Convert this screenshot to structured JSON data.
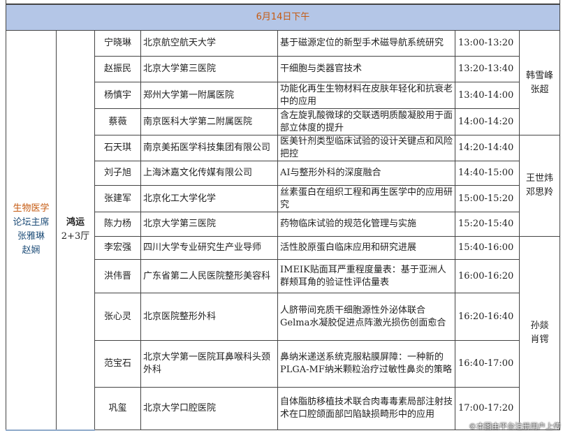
{
  "header": {
    "title": "6月14日下午"
  },
  "forum": {
    "title": "生物医学",
    "chair_label": "论坛主席",
    "chairs": [
      "张雅琳",
      "赵娴"
    ]
  },
  "hall": {
    "line1": "鸿运",
    "line2": "2+3厅"
  },
  "moderators": [
    [
      "韩雪峰",
      "张超"
    ],
    [
      "王世炜",
      "邓思羚"
    ],
    [
      "孙燚",
      "肖锷"
    ]
  ],
  "rows": [
    {
      "name": "宁晓琳",
      "org": "北京航空航天大学",
      "topic": "基于磁源定位的新型手术磁导航系统研究",
      "time": "13:00-13:20"
    },
    {
      "name": "赵振民",
      "org": "北京大学第三医院",
      "topic": "干细胞与类器官技术",
      "time": "13:20-13:40"
    },
    {
      "name": "杨慎宇",
      "org": "郑州大学第一附属医院",
      "topic": "功能化再生生物材料在皮肤年轻化和抗衰老中的应用",
      "time": "13:40-14:00"
    },
    {
      "name": "蔡薇",
      "org": "南京医科大学第二附属医院",
      "topic": "含左旋乳酸微球的交联透明质酸凝胶用于面部立体度的提升",
      "time": "14:00-14:20"
    },
    {
      "name": "石天琪",
      "org": "南京美拓医学科技集团有限公司",
      "topic": "医美针剂类型临床试验的设计关键点和风险把控",
      "time": "14:20-14:40"
    },
    {
      "name": "刘子旭",
      "org": "上海沐嘉文化传媒有限公司",
      "topic": "AI与整形外科的深度融合",
      "time": "14:40-15:00"
    },
    {
      "name": "张建军",
      "org": "北京化工大学化学",
      "topic": "丝素蛋白在组织工程和再生医学中的应用研究",
      "time": "15:00-15:20"
    },
    {
      "name": "陈力杨",
      "org": "北京大学第三医院",
      "topic": "药物临床试验的规范化管理与实施",
      "time": "15:20-15:40"
    },
    {
      "name": "李宏强",
      "org": "四川大学专业研究生产业导师",
      "topic": "活性胶原蛋白临床应用和研究进展",
      "time": "15:40-16:00"
    },
    {
      "name": "洪伟晋",
      "org": "广东省第二人民医院整形美容科",
      "topic": "IMEIK贴面耳严重程度量表：基于亚洲人群颊耳角的验证性评估量表",
      "time": "16:00-16:20"
    },
    {
      "name": "张心灵",
      "org": "北京医院整形外科",
      "topic": "人脐带间充质干细胞源性外泌体联合Gelma水凝胶促进点阵激光损伤创面愈合",
      "time": "16:20-16:40"
    },
    {
      "name": "范宝石",
      "org": "北京大学第一医院耳鼻喉科头颈外科",
      "topic": "鼻纳米递送系统克服粘膜屏障：一种新的PLGA-MF纳米颗粒治疗过敏性鼻炎的策略",
      "time": "16:40-17:00"
    },
    {
      "name": "巩玺",
      "org": "北京大学口腔医院",
      "topic": "自体脂肪移植技术联合肉毒毒素局部注射技术在口腔颌面部凹陷缺损畸形中的应用",
      "time": "17:00-17:20"
    }
  ],
  "watermark": "©本图由平台注册用户上传"
}
